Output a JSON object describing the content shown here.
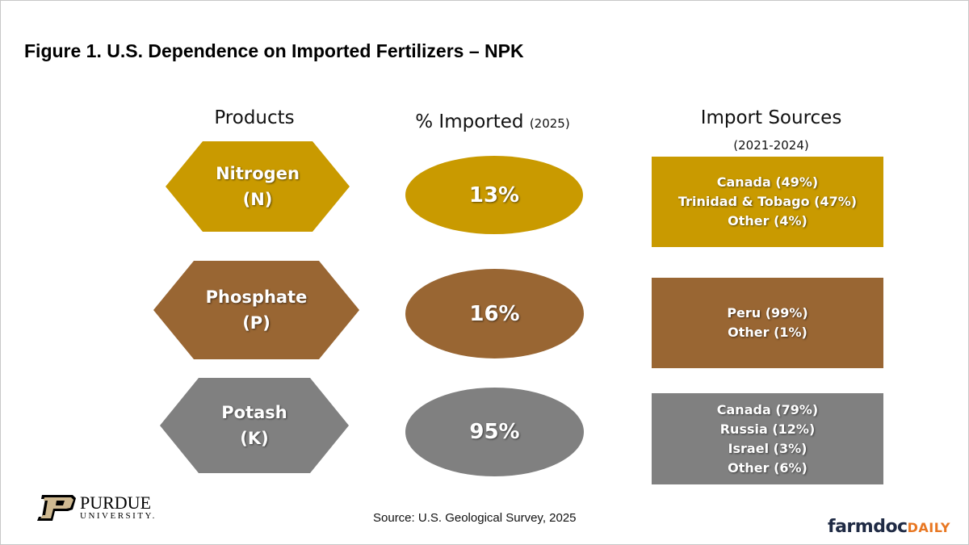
{
  "title": "Figure 1. U.S. Dependence on Imported Fertilizers – NPK",
  "headers": {
    "products": "Products",
    "imported": "% Imported",
    "imported_year": "(2025)",
    "sources": "Import Sources",
    "sources_years": "(2021-2024)"
  },
  "colors": {
    "nitrogen": "#C99A00",
    "phosphate": "#996633",
    "potash": "#808080"
  },
  "rows": [
    {
      "product": "Nitrogen",
      "symbol": "(N)",
      "pct": "13%",
      "sources": [
        "Canada (49%)",
        "Trinidad & Tobago (47%)",
        "Other (4%)"
      ]
    },
    {
      "product": "Phosphate",
      "symbol": "(P)",
      "pct": "16%",
      "sources": [
        "Peru (99%)",
        "Other (1%)"
      ]
    },
    {
      "product": "Potash",
      "symbol": "(K)",
      "pct": "95%",
      "sources": [
        "Canada (79%)",
        "Russia (12%)",
        "Israel (3%)",
        "Other (6%)"
      ]
    }
  ],
  "source": "Source: U.S. Geological Survey, 2025",
  "logos": {
    "purdue_top": "PURDUE",
    "purdue_bottom": "UNIVERSITY.",
    "farmdoc": "farmdoc",
    "farmdoc_daily": "DAILY"
  }
}
